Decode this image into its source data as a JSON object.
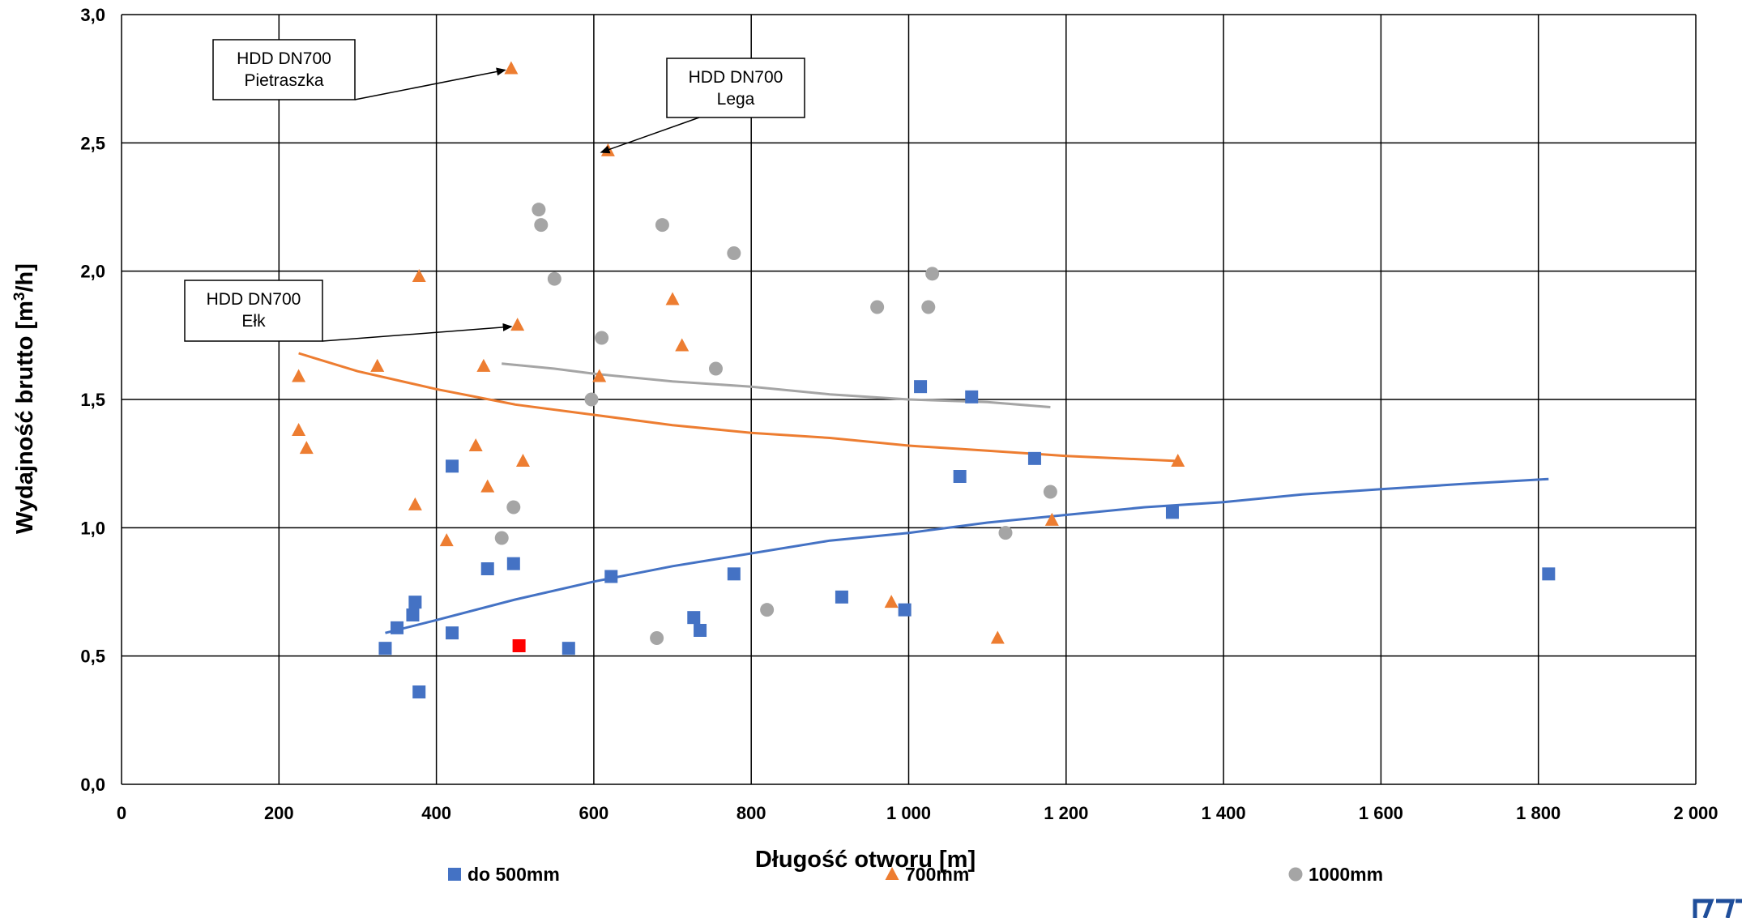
{
  "chart_data": {
    "type": "scatter",
    "xlabel": "Długość otworu [m]",
    "ylabel_main": "Wydajność brutto [m",
    "ylabel_sup": "3",
    "ylabel_end": "/h]",
    "xlim": [
      0,
      2000
    ],
    "ylim": [
      0,
      3
    ],
    "x_ticks": [
      0,
      200,
      400,
      600,
      800,
      1000,
      1200,
      1400,
      1600,
      1800,
      2000
    ],
    "x_tick_labels": [
      "0",
      "200",
      "400",
      "600",
      "800",
      "1 000",
      "1 200",
      "1 400",
      "1 600",
      "1 800",
      "2 000"
    ],
    "y_ticks": [
      0,
      0.5,
      1,
      1.5,
      2,
      2.5,
      3
    ],
    "y_tick_labels": [
      "0,0",
      "0,5",
      "1,0",
      "1,5",
      "2,0",
      "2,5",
      "3,0"
    ],
    "grid": true,
    "legend_position": "bottom",
    "series": [
      {
        "name": "do 500mm",
        "marker": "square",
        "color": "#4472C4",
        "points": [
          [
            335,
            0.53
          ],
          [
            350,
            0.61
          ],
          [
            370,
            0.66
          ],
          [
            373,
            0.71
          ],
          [
            378,
            0.36
          ],
          [
            420,
            0.59
          ],
          [
            420,
            1.24
          ],
          [
            465,
            0.84
          ],
          [
            498,
            0.86
          ],
          [
            568,
            0.53
          ],
          [
            622,
            0.81
          ],
          [
            727,
            0.65
          ],
          [
            735,
            0.6
          ],
          [
            778,
            0.82
          ],
          [
            915,
            0.73
          ],
          [
            995,
            0.68
          ],
          [
            1015,
            1.55
          ],
          [
            1065,
            1.2
          ],
          [
            1080,
            1.51
          ],
          [
            1160,
            1.27
          ],
          [
            1335,
            1.06
          ],
          [
            1813,
            0.82
          ]
        ]
      },
      {
        "name": "700mm",
        "marker": "triangle",
        "color": "#ED7D31",
        "points": [
          [
            225,
            1.59
          ],
          [
            225,
            1.38
          ],
          [
            235,
            1.31
          ],
          [
            325,
            1.63
          ],
          [
            373,
            1.09
          ],
          [
            378,
            1.98
          ],
          [
            413,
            0.95
          ],
          [
            450,
            1.32
          ],
          [
            460,
            1.63
          ],
          [
            465,
            1.16
          ],
          [
            495,
            2.79
          ],
          [
            503,
            1.79
          ],
          [
            510,
            1.26
          ],
          [
            607,
            1.59
          ],
          [
            618,
            2.47
          ],
          [
            700,
            1.89
          ],
          [
            712,
            1.71
          ],
          [
            978,
            0.71
          ],
          [
            1113,
            0.57
          ],
          [
            1182,
            1.03
          ],
          [
            1342,
            1.26
          ]
        ]
      },
      {
        "name": "1000mm",
        "marker": "circle",
        "color": "#A5A5A5",
        "points": [
          [
            483,
            0.96
          ],
          [
            498,
            1.08
          ],
          [
            530,
            2.24
          ],
          [
            533,
            2.18
          ],
          [
            550,
            1.97
          ],
          [
            597,
            1.5
          ],
          [
            610,
            1.74
          ],
          [
            680,
            0.57
          ],
          [
            687,
            2.18
          ],
          [
            755,
            1.62
          ],
          [
            778,
            2.07
          ],
          [
            820,
            0.68
          ],
          [
            960,
            1.86
          ],
          [
            1025,
            1.86
          ],
          [
            1030,
            1.99
          ],
          [
            1123,
            0.98
          ],
          [
            1180,
            1.14
          ]
        ]
      }
    ],
    "highlight_points": [
      {
        "x": 505,
        "y": 0.54,
        "marker": "square",
        "color": "#FF0000"
      }
    ],
    "trendlines": [
      {
        "series": "do 500mm",
        "color": "#4472C4",
        "points": [
          [
            335,
            0.59
          ],
          [
            400,
            0.64
          ],
          [
            500,
            0.72
          ],
          [
            600,
            0.79
          ],
          [
            700,
            0.85
          ],
          [
            800,
            0.9
          ],
          [
            900,
            0.95
          ],
          [
            1000,
            0.98
          ],
          [
            1100,
            1.02
          ],
          [
            1200,
            1.05
          ],
          [
            1300,
            1.08
          ],
          [
            1400,
            1.1
          ],
          [
            1500,
            1.13
          ],
          [
            1600,
            1.15
          ],
          [
            1700,
            1.17
          ],
          [
            1813,
            1.19
          ]
        ]
      },
      {
        "series": "700mm",
        "color": "#ED7D31",
        "points": [
          [
            225,
            1.68
          ],
          [
            300,
            1.61
          ],
          [
            400,
            1.54
          ],
          [
            500,
            1.48
          ],
          [
            600,
            1.44
          ],
          [
            700,
            1.4
          ],
          [
            800,
            1.37
          ],
          [
            900,
            1.35
          ],
          [
            1000,
            1.32
          ],
          [
            1100,
            1.3
          ],
          [
            1200,
            1.28
          ],
          [
            1342,
            1.26
          ]
        ]
      },
      {
        "series": "1000mm",
        "color": "#A5A5A5",
        "points": [
          [
            483,
            1.64
          ],
          [
            550,
            1.62
          ],
          [
            600,
            1.6
          ],
          [
            700,
            1.57
          ],
          [
            800,
            1.55
          ],
          [
            900,
            1.52
          ],
          [
            1000,
            1.5
          ],
          [
            1100,
            1.49
          ],
          [
            1180,
            1.47
          ]
        ]
      }
    ],
    "annotations": [
      {
        "line1": "HDD DN700",
        "line2": "Pietraszka",
        "target": [
          495,
          2.79
        ]
      },
      {
        "line1": "HDD DN700",
        "line2": "Lega",
        "target": [
          618,
          2.47
        ]
      },
      {
        "line1": "HDD DN700",
        "line2": "Ełk",
        "target": [
          503,
          1.79
        ]
      }
    ]
  }
}
